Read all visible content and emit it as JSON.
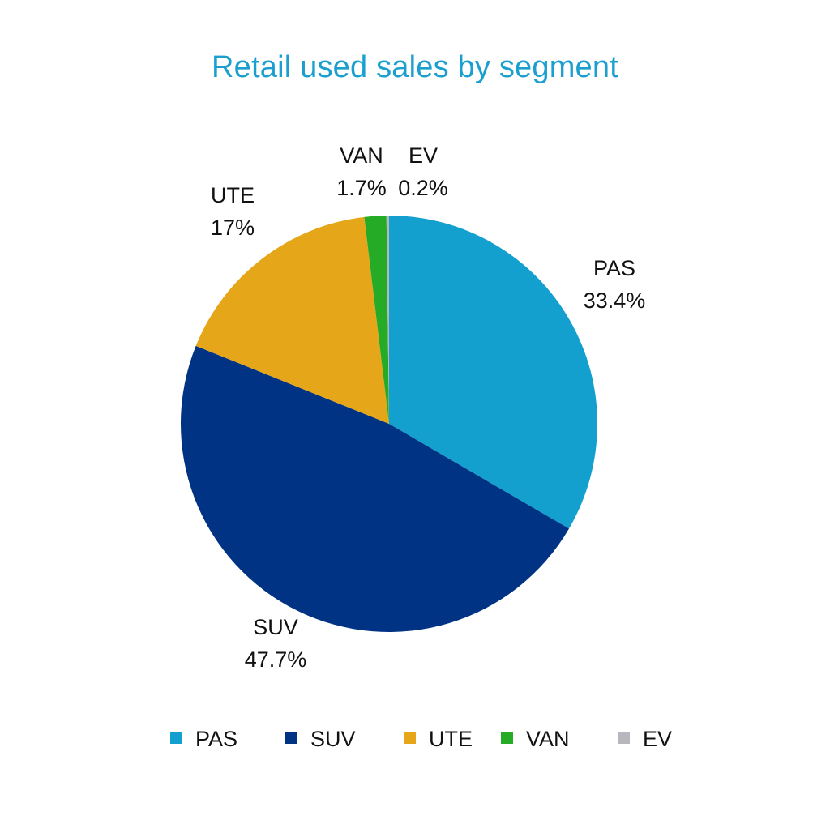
{
  "chart_data": {
    "type": "pie",
    "title": "Retail used sales by segment",
    "categories": [
      "PAS",
      "SUV",
      "UTE",
      "VAN",
      "EV"
    ],
    "values": [
      33.4,
      47.7,
      17,
      1.7,
      0.2
    ],
    "value_labels": [
      "33.4%",
      "47.7%",
      "17%",
      "1.7%",
      "0.2%"
    ],
    "colors": [
      "#14a0cf",
      "#003383",
      "#e5a719",
      "#26ab27",
      "#b7b8bd"
    ],
    "start_angle": "12 o'clock",
    "direction": "clockwise",
    "legend_position": "bottom"
  }
}
